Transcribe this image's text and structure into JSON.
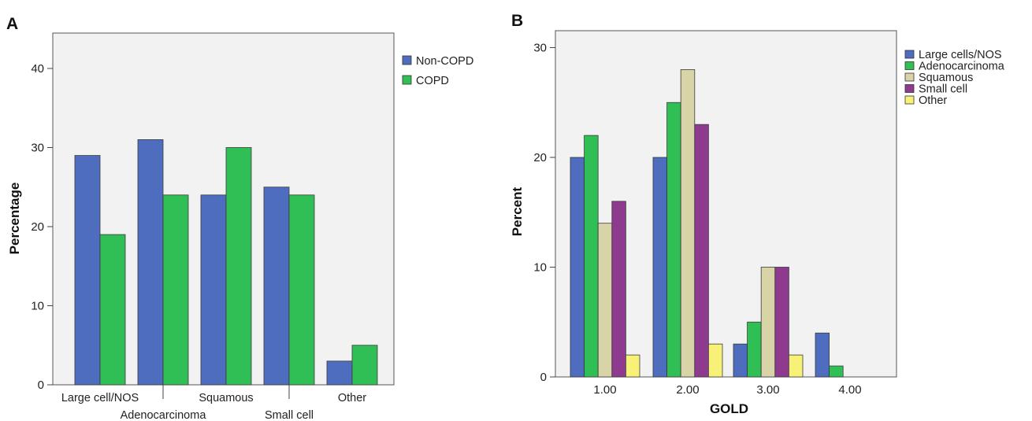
{
  "figure": {
    "panels": [
      "A",
      "B"
    ]
  },
  "chart_data": [
    {
      "type": "bar",
      "panel_label": "A",
      "categories": [
        "Large cell/NOS",
        "Adenocarcinoma",
        "Squamous",
        "Small cell",
        "Other"
      ],
      "series": [
        {
          "name": "Non-COPD",
          "color": "#4f6dbf",
          "values": [
            29,
            31,
            24,
            25,
            3
          ]
        },
        {
          "name": "COPD",
          "color": "#2fbf55",
          "values": [
            19,
            24,
            30,
            24,
            5
          ]
        }
      ],
      "xlabel": "",
      "ylabel": "Percentage",
      "ylim": [
        0,
        45
      ],
      "yticks": [
        0,
        10,
        20,
        30,
        40
      ],
      "legend": "right",
      "plot_background": "#f2f2f2"
    },
    {
      "type": "bar",
      "panel_label": "B",
      "categories": [
        "1.00",
        "2.00",
        "3.00",
        "4.00"
      ],
      "series": [
        {
          "name": "Large cells/NOS",
          "color": "#4f6dbf",
          "values": [
            20,
            20,
            3,
            4
          ]
        },
        {
          "name": "Adenocarcinoma",
          "color": "#2fbf55",
          "values": [
            22,
            25,
            5,
            1
          ]
        },
        {
          "name": "Squamous",
          "color": "#d9d3a8",
          "values": [
            14,
            28,
            10,
            0
          ]
        },
        {
          "name": "Small cell",
          "color": "#8e3a8e",
          "values": [
            16,
            23,
            10,
            0
          ]
        },
        {
          "name": "Other",
          "color": "#f7f277",
          "values": [
            2,
            3,
            2,
            0
          ]
        }
      ],
      "xlabel": "GOLD",
      "ylabel": "Percent",
      "ylim": [
        0,
        31
      ],
      "yticks": [
        0,
        10,
        20,
        30
      ],
      "legend": "right",
      "plot_background": "#f2f2f2"
    }
  ]
}
